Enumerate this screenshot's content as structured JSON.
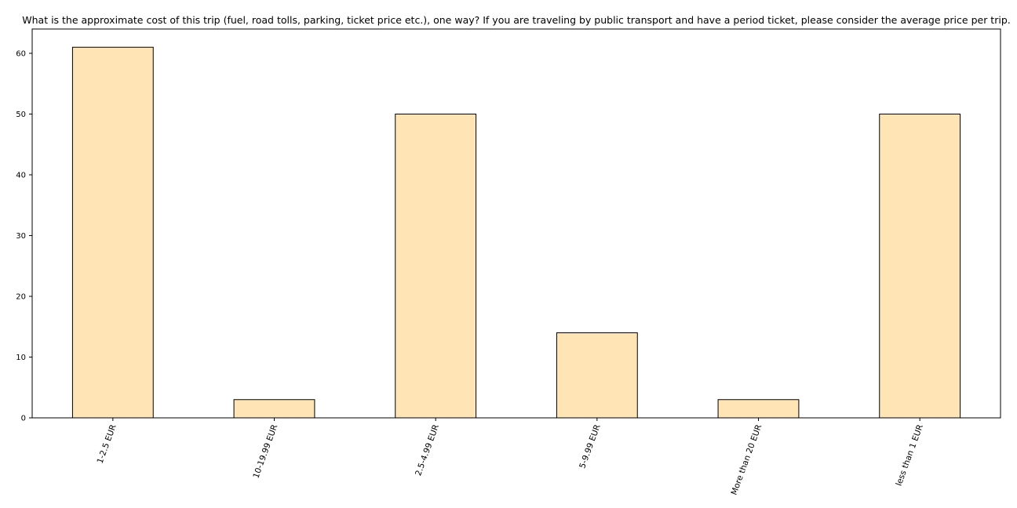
{
  "chart_data": {
    "type": "bar",
    "title": "What is the approximate cost of this trip (fuel, road tolls, parking, ticket price etc.), one way? If you are traveling by public transport and have a period ticket, please consider the average price per trip.",
    "xlabel": "",
    "ylabel": "",
    "categories": [
      "1-2.5 EUR",
      "10-19.99 EUR",
      "2.5-4.99 EUR",
      "5-9.99 EUR",
      "More than 20 EUR",
      "less than 1 EUR"
    ],
    "values": [
      61,
      3,
      50,
      14,
      3,
      50
    ],
    "ylim": [
      0,
      64
    ],
    "yticks": [
      0,
      10,
      20,
      30,
      40,
      50,
      60
    ],
    "grid": false,
    "legend": "none",
    "bar_color": "#ffe4b5",
    "bar_edge_color": "#000000"
  }
}
